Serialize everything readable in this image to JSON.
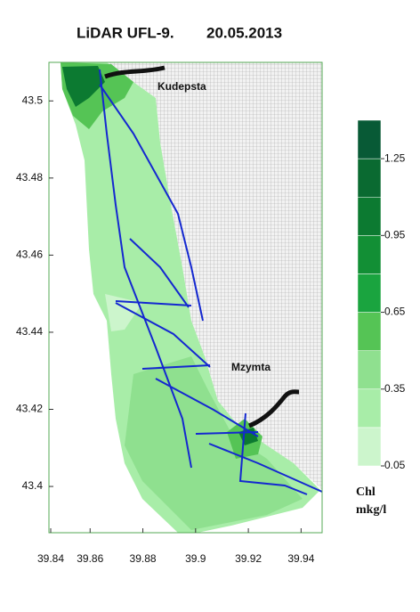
{
  "chart_data": {
    "type": "contour",
    "title": "LiDAR UFL-9.",
    "subtitle": "20.05.2013",
    "xlim": [
      39.84,
      39.95
    ],
    "xticks": [
      39.84,
      39.86,
      39.88,
      39.9,
      39.92,
      39.94
    ],
    "ylim": [
      43.388,
      43.51
    ],
    "yticks": [
      43.4,
      43.42,
      43.44,
      43.46,
      43.48,
      43.5
    ],
    "colorbar": {
      "levels": [
        0.05,
        0.2,
        0.35,
        0.5,
        0.65,
        0.8,
        0.95,
        1.1,
        1.25,
        1.4
      ],
      "ticks": [
        0.05,
        0.35,
        0.65,
        0.95,
        1.25
      ],
      "colors": [
        "#ccf5cc",
        "#a8eda8",
        "#8fe08f",
        "#55c455",
        "#1aa43f",
        "#128f35",
        "#0c7a31",
        "#0a6a31",
        "#085a36"
      ],
      "label": "Chl",
      "unit": "mkg/l"
    },
    "annotations": [
      "Kudepsta",
      "Mzymta"
    ]
  }
}
